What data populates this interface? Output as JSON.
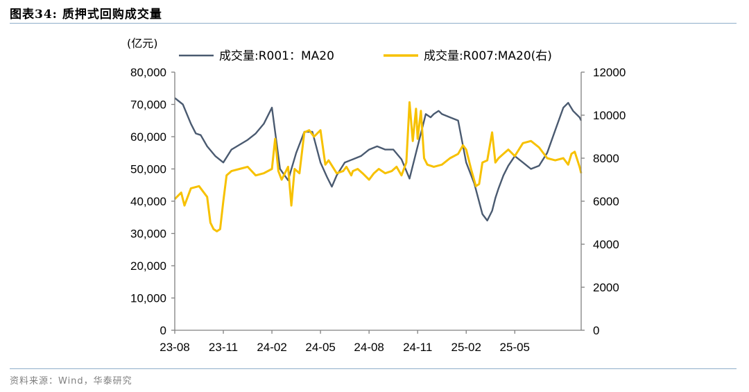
{
  "figure": {
    "title": "图表34:  质押式回购成交量",
    "source": "资料来源：Wind，华泰研究"
  },
  "colors": {
    "r001": "#4a5a70",
    "r007": "#f7c100",
    "axis": "#808080",
    "rule": "#8eaec9"
  },
  "chart_data": {
    "type": "line",
    "y_unit_label": "(亿元)",
    "x_tick_labels": [
      "23-08",
      "23-11",
      "24-02",
      "24-05",
      "24-08",
      "24-11",
      "25-02",
      "25-05"
    ],
    "x_range": [
      0,
      25.1
    ],
    "y_left": {
      "range": [
        0,
        80000
      ],
      "ticks": [
        0,
        10000,
        20000,
        30000,
        40000,
        50000,
        60000,
        70000,
        80000
      ],
      "tick_labels": [
        "0",
        "10,000",
        "20,000",
        "30,000",
        "40,000",
        "50,000",
        "60,000",
        "70,000",
        "80,000"
      ]
    },
    "y_right": {
      "range": [
        0,
        12000
      ],
      "ticks": [
        0,
        2000,
        4000,
        6000,
        8000,
        10000,
        12000
      ],
      "tick_labels": [
        "0",
        "2000",
        "4000",
        "6000",
        "8000",
        "10000",
        "12000"
      ]
    },
    "series": [
      {
        "name": "成交量:R001：MA20",
        "axis": "left",
        "x": [
          0,
          0.5,
          1,
          1.3,
          1.6,
          2,
          2.5,
          3,
          3.5,
          4,
          4.5,
          5,
          5.5,
          6,
          6.5,
          7,
          7.5,
          8,
          8.5,
          9,
          9.4,
          9.7,
          10,
          10.5,
          11,
          11.5,
          12,
          12.5,
          13,
          13.5,
          14,
          14.5,
          15,
          15.5,
          15.8,
          16,
          16.3,
          16.5,
          17,
          17.5,
          18,
          18.5,
          19,
          19.3,
          19.6,
          19.8,
          20,
          20.3,
          20.6,
          21,
          21.5,
          22,
          22.5,
          23,
          23.5,
          24,
          24.3,
          24.6,
          25,
          25.1
        ],
        "values": [
          72000,
          70000,
          64000,
          61000,
          60500,
          57000,
          54000,
          52000,
          56000,
          57500,
          59000,
          61000,
          64000,
          69000,
          50000,
          46500,
          55000,
          61500,
          61500,
          52000,
          47500,
          44500,
          48000,
          52000,
          53000,
          54000,
          56000,
          57000,
          56000,
          56000,
          53000,
          47000,
          57000,
          67000,
          66000,
          67000,
          68000,
          67000,
          66000,
          65000,
          52000,
          45500,
          36000,
          34000,
          37000,
          41000,
          44000,
          48000,
          51000,
          54000,
          52000,
          50000,
          51000,
          55000,
          62000,
          69000,
          70500,
          68000,
          66000,
          65000
        ]
      },
      {
        "name": "成交量:R007:MA20(右)",
        "axis": "right",
        "x": [
          0,
          0.4,
          0.6,
          1,
          1.5,
          2,
          2.2,
          2.4,
          2.6,
          2.8,
          3,
          3.2,
          3.5,
          4,
          4.5,
          5,
          5.5,
          6,
          6.2,
          6.4,
          6.6,
          7,
          7.2,
          7.4,
          7.7,
          8,
          8.3,
          8.6,
          9,
          9.3,
          9.5,
          10,
          10.4,
          10.6,
          10.9,
          11,
          11.3,
          11.6,
          12,
          12.3,
          12.6,
          13,
          13.4,
          13.7,
          14,
          14.3,
          14.5,
          14.7,
          14.9,
          15,
          15.2,
          15.4,
          15.6,
          16,
          16.5,
          17,
          17.5,
          17.8,
          18,
          18.3,
          18.6,
          18.8,
          19,
          19.3,
          19.6,
          19.8,
          20,
          20.3,
          20.6,
          21,
          21.5,
          22,
          22.5,
          23,
          23.5,
          24,
          24.3,
          24.5,
          24.7,
          25,
          25.1
        ],
        "values": [
          6100,
          6400,
          5800,
          6600,
          6700,
          6200,
          5000,
          4700,
          4600,
          4700,
          6000,
          7200,
          7400,
          7500,
          7600,
          7200,
          7300,
          7500,
          8900,
          7400,
          7000,
          7600,
          5800,
          7500,
          7300,
          9200,
          9300,
          9000,
          9300,
          7700,
          7900,
          7300,
          7400,
          7600,
          7200,
          7400,
          7500,
          7300,
          7000,
          7300,
          7500,
          7300,
          7400,
          7600,
          7200,
          7800,
          10600,
          8800,
          10300,
          8900,
          10200,
          8000,
          7700,
          7600,
          7700,
          8000,
          8200,
          8600,
          8400,
          7500,
          6700,
          6800,
          7800,
          7900,
          9200,
          7800,
          8000,
          8200,
          8400,
          8100,
          8700,
          8800,
          8500,
          8000,
          7900,
          8000,
          7700,
          8200,
          8300,
          7600,
          7300
        ]
      }
    ]
  }
}
